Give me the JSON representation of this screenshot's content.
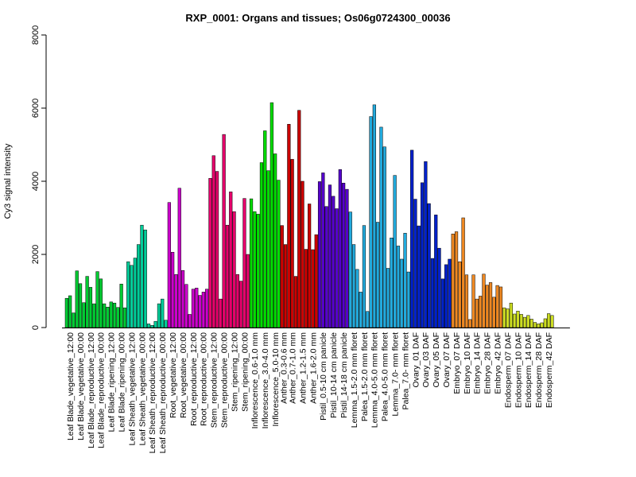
{
  "chart_data": {
    "type": "bar",
    "title": "RXP_0001: Organs and tissues; Os06g0724300_00036",
    "ylabel": "Cy3 signal intensity",
    "xlabel": "",
    "ylim": [
      0,
      8000
    ],
    "yticks": [
      0,
      2000,
      4000,
      6000,
      8000
    ],
    "grid": false,
    "groups": [
      {
        "label": "Leaf Blade_vegetative_12:00",
        "color": "#00cc33",
        "values": [
          800,
          870,
          400
        ]
      },
      {
        "label": "Leaf Blade_vegetative_00:00",
        "color": "#00cc33",
        "values": [
          1550,
          1200,
          680
        ]
      },
      {
        "label": "Leaf Blade_reproductive_12:00",
        "color": "#00cc33",
        "values": [
          1400,
          1100,
          650
        ]
      },
      {
        "label": "Leaf Blade_reproductive_00:00",
        "color": "#00cc33",
        "values": [
          1530,
          1330,
          650
        ]
      },
      {
        "label": "Leaf Blade_ripening_12:00",
        "color": "#00cc33",
        "values": [
          560,
          700,
          670
        ]
      },
      {
        "label": "Leaf Blade_ripening_00:00",
        "color": "#00cc33",
        "values": [
          550,
          1190,
          540
        ]
      },
      {
        "label": "Leaf Sheath_vegetative_12:00",
        "color": "#00cc99",
        "values": [
          1800,
          1700,
          1900
        ]
      },
      {
        "label": "Leaf Sheath_vegetative_00:00",
        "color": "#00cc99",
        "values": [
          2270,
          2800,
          2670
        ]
      },
      {
        "label": "Leaf Sheath_reproductive_12:00",
        "color": "#00cc99",
        "values": [
          100,
          60,
          170
        ]
      },
      {
        "label": "Leaf Sheath_reproductive_00:00",
        "color": "#00cc99",
        "values": [
          650,
          780,
          200
        ]
      },
      {
        "label": "Root_vegetative_12:00",
        "color": "#cc00cc",
        "values": [
          3420,
          2060,
          1450
        ]
      },
      {
        "label": "Root_vegetative_00:00",
        "color": "#cc00cc",
        "values": [
          3810,
          1560,
          1180
        ]
      },
      {
        "label": "Root_reproductive_12:00",
        "color": "#cc00cc",
        "values": [
          360,
          1050,
          1080
        ]
      },
      {
        "label": "Root_reproductive_00:00",
        "color": "#cc00cc",
        "values": [
          880,
          970,
          1050
        ]
      },
      {
        "label": "Stem_reproductive_12:00",
        "color": "#e6006b",
        "values": [
          4080,
          4700,
          4270
        ]
      },
      {
        "label": "Stem_reproductive_00:00",
        "color": "#e6006b",
        "values": [
          780,
          5280,
          2800
        ]
      },
      {
        "label": "Stem_ripening_12:00",
        "color": "#e6006b",
        "values": [
          3710,
          3170,
          1450
        ]
      },
      {
        "label": "Stem_ripening_00:00",
        "color": "#e6006b",
        "values": [
          1270,
          3530,
          2000
        ]
      },
      {
        "label": "Inflorescence_0.6-1.0 mm",
        "color": "#00dd00",
        "values": [
          3520,
          3170,
          3100
        ]
      },
      {
        "label": "Inflorescence_3.0-4.0 mm",
        "color": "#00dd00",
        "values": [
          4510,
          5380,
          4290
        ]
      },
      {
        "label": "Inflorescence_5.0-10 mm",
        "color": "#00dd00",
        "values": [
          6150,
          4750,
          4030
        ]
      },
      {
        "label": "Anther_0.3-0.6 mm",
        "color": "#cc0000",
        "values": [
          2790,
          2270
        ]
      },
      {
        "label": "Anther_0.7-1.0 mm",
        "color": "#cc0000",
        "values": [
          5560,
          4600,
          1400
        ]
      },
      {
        "label": "Anther_1.2-1.5 mm",
        "color": "#cc0000",
        "values": [
          5940,
          4000,
          2140
        ]
      },
      {
        "label": "Anther_1.6-2.0 mm",
        "color": "#cc0000",
        "values": [
          3380,
          2130,
          2540
        ]
      },
      {
        "label": "Pistil_0.5-10 cm panicle",
        "color": "#5500cc",
        "values": [
          3990,
          4230,
          3310
        ]
      },
      {
        "label": "Pistil_10-14 cm panicle",
        "color": "#5500cc",
        "values": [
          3900,
          3590,
          3250
        ]
      },
      {
        "label": "Pistil_14-18 cm panicle",
        "color": "#5500cc",
        "values": [
          4320,
          3950,
          3780
        ]
      },
      {
        "label": "Lemma_1.5-2.0 mm floret",
        "color": "#22aadd",
        "values": [
          3160,
          2270,
          1590
        ]
      },
      {
        "label": "Palea_1.5-2.0 mm floret",
        "color": "#22aadd",
        "values": [
          970,
          2790,
          440
        ]
      },
      {
        "label": "Lemma_4.0-5.0 mm floret",
        "color": "#22aadd",
        "values": [
          5770,
          6090,
          2880
        ]
      },
      {
        "label": "Palea_4.0-5.0 mm floret",
        "color": "#22aadd",
        "values": [
          5480,
          4940,
          1620
        ]
      },
      {
        "label": "Lemma_7.0- mm floret",
        "color": "#22aadd",
        "values": [
          2450,
          4160,
          2230
        ]
      },
      {
        "label": "Palea_7.0- mm floret",
        "color": "#22aadd",
        "values": [
          1870,
          2580,
          1520
        ]
      },
      {
        "label": "Ovary_01 DAF",
        "color": "#0022cc",
        "values": [
          4850,
          3510,
          2780
        ]
      },
      {
        "label": "Ovary_03 DAF",
        "color": "#0022cc",
        "values": [
          3960,
          4540,
          3390
        ]
      },
      {
        "label": "Ovary_05 DAF",
        "color": "#0022cc",
        "values": [
          1890,
          3080,
          2170
        ]
      },
      {
        "label": "Ovary_07 DAF",
        "color": "#0022cc",
        "values": [
          1330,
          1720,
          1870
        ]
      },
      {
        "label": "Embryo_07 DAF",
        "color": "#ee8822",
        "values": [
          2560,
          2620,
          1800
        ]
      },
      {
        "label": "Embryo_10 DAF",
        "color": "#ee8822",
        "values": [
          3000,
          1440,
          220
        ]
      },
      {
        "label": "Embryo_14 DAF",
        "color": "#ee8822",
        "values": [
          1440,
          780,
          860
        ]
      },
      {
        "label": "Embryo_28 DAF",
        "color": "#ee8822",
        "values": [
          1460,
          1160,
          1230
        ]
      },
      {
        "label": "Embryo_42 DAF",
        "color": "#ee8822",
        "values": [
          830,
          1150,
          1110
        ]
      },
      {
        "label": "Endosperm_07 DAF",
        "color": "#ccdd22",
        "values": [
          540,
          510,
          670
        ]
      },
      {
        "label": "Endosperm_10 DAF",
        "color": "#ccdd22",
        "values": [
          370,
          450,
          360
        ]
      },
      {
        "label": "Endosperm_14 DAF",
        "color": "#ccdd22",
        "values": [
          280,
          330,
          230
        ]
      },
      {
        "label": "Endosperm_28 DAF",
        "color": "#ccdd22",
        "values": [
          140,
          100,
          130
        ]
      },
      {
        "label": "Endosperm_42 DAF",
        "color": "#ccdd22",
        "values": [
          240,
          380,
          330
        ]
      }
    ]
  }
}
